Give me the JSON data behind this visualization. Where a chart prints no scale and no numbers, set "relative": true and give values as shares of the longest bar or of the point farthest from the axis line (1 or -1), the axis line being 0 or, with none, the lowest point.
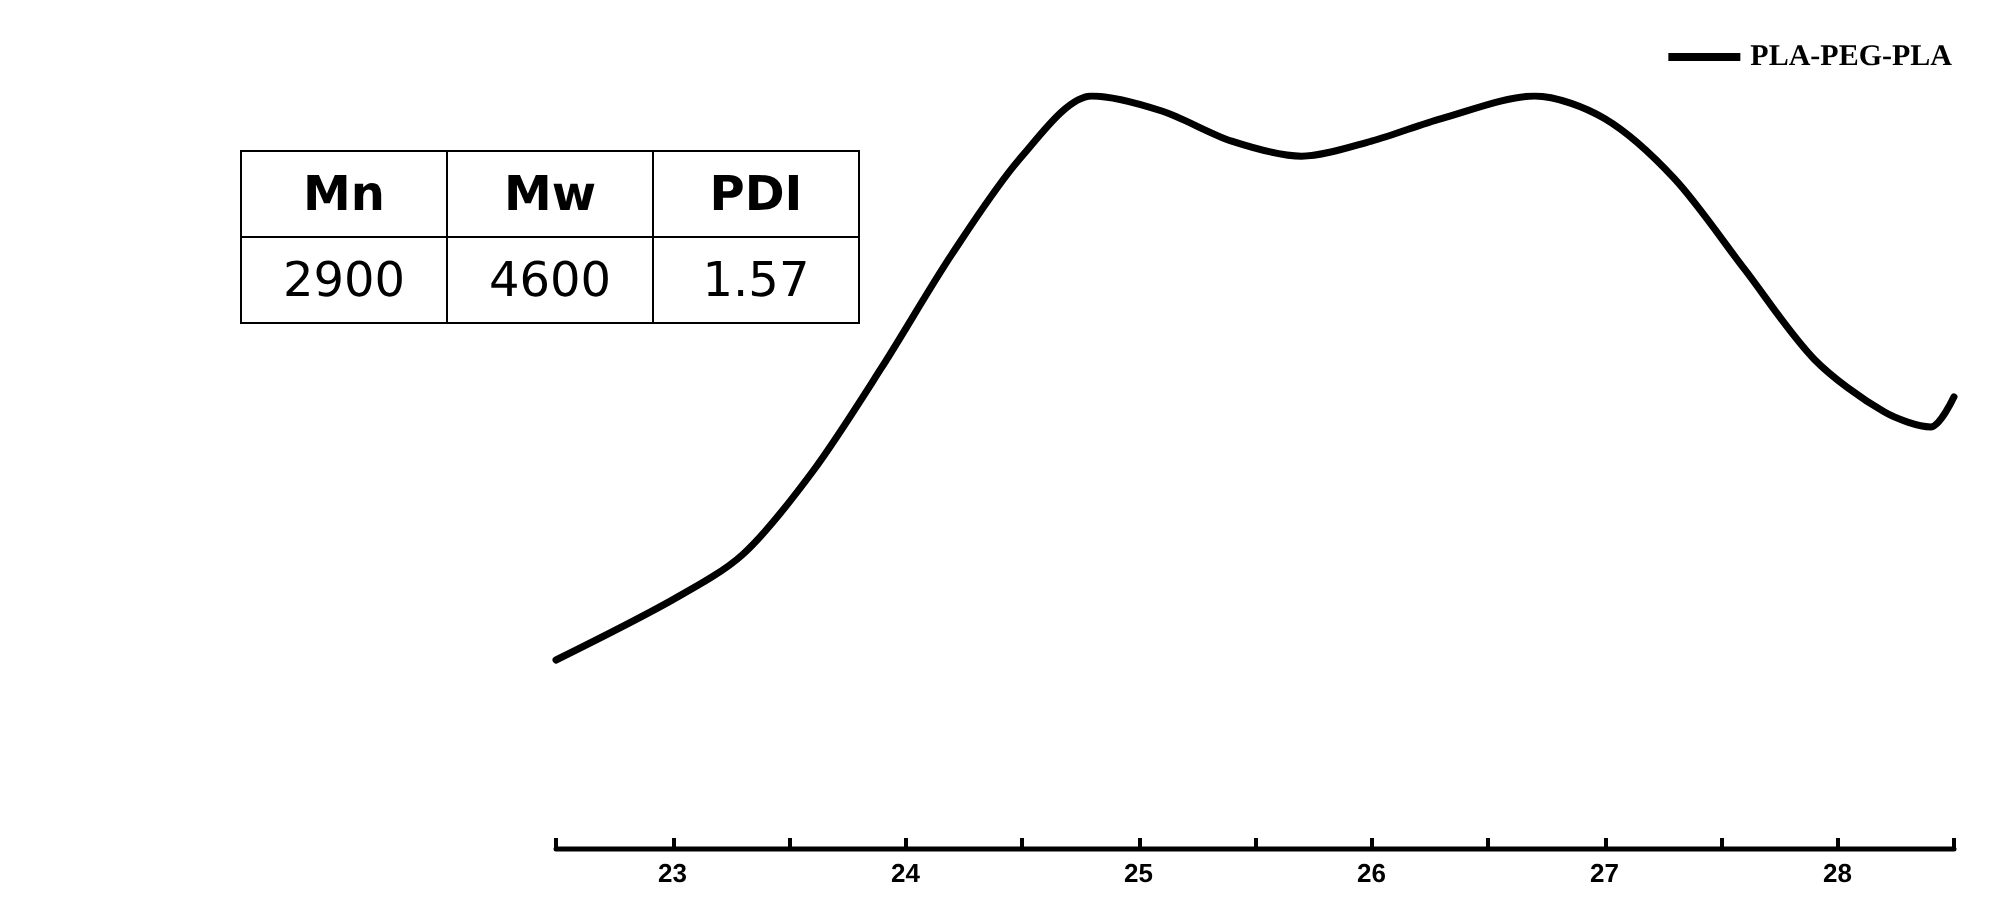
{
  "chart_data": {
    "type": "line",
    "relative": true,
    "legend": "top right",
    "marker": "none",
    "line_style": "solid",
    "grid": false,
    "xlim": [
      22.5,
      28.5
    ],
    "xticks": [
      {
        "value": 22.5,
        "label": null
      },
      23,
      {
        "value": 23.5,
        "label": null
      },
      24,
      {
        "value": 24.5,
        "label": null
      },
      25,
      {
        "value": 25.5,
        "label": null
      },
      26,
      {
        "value": 26.5,
        "label": null
      },
      27,
      {
        "value": 27.5,
        "label": null
      },
      28,
      {
        "value": 28.5,
        "label": null
      }
    ],
    "annotations": [
      "Mn",
      "Mw",
      "PDI",
      "2900",
      "4600",
      "1.57"
    ],
    "series": [
      {
        "name": "PLA-PEG-PLA",
        "color": "#000000",
        "x": [
          22.5,
          23.0,
          23.3,
          23.6,
          23.9,
          24.2,
          24.5,
          24.8,
          25.1,
          25.4,
          25.7,
          26.0,
          26.3,
          26.7,
          27.0,
          27.3,
          27.6,
          27.9,
          28.2,
          28.4,
          28.5
        ],
        "values": [
          0.25,
          0.33,
          0.39,
          0.5,
          0.64,
          0.79,
          0.92,
          1.0,
          0.98,
          0.94,
          0.92,
          0.94,
          0.97,
          1.0,
          0.97,
          0.89,
          0.77,
          0.65,
          0.58,
          0.56,
          0.6
        ]
      }
    ]
  }
}
